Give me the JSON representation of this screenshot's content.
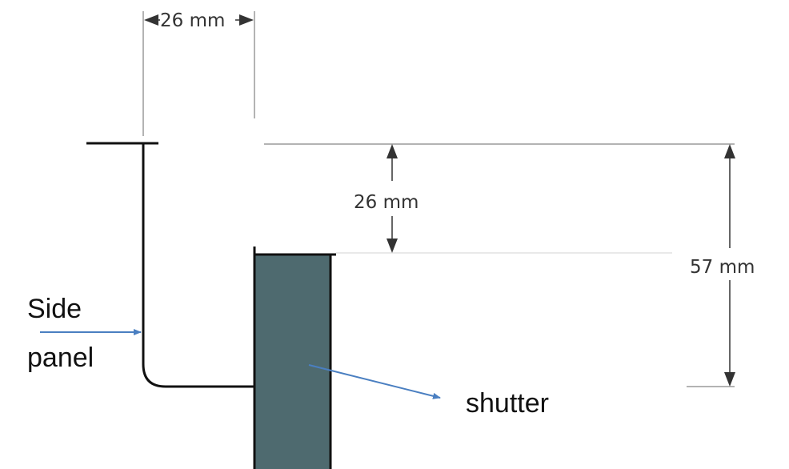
{
  "dimensions": {
    "top_width": "26 mm",
    "gap_height": "26 mm",
    "total_height": "57 mm"
  },
  "labels": {
    "side_panel_line1": "Side",
    "side_panel_line2": "panel",
    "shutter": "shutter"
  },
  "colors": {
    "shutter_fill": "#4e6a6f",
    "outline": "#111111",
    "dimension_line": "#9a9a9a",
    "dimension_arrow": "#333333",
    "callout_arrow": "#4a7fc1"
  }
}
